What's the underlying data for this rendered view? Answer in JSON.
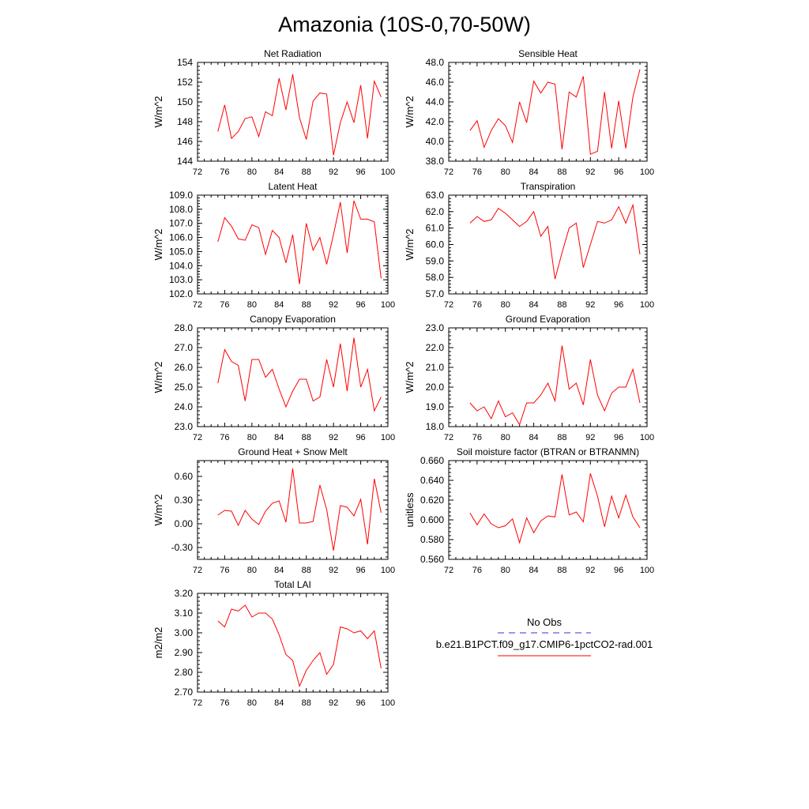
{
  "figure": {
    "title": "Amazonia (10S-0,70-50W)"
  },
  "legend": {
    "entries": [
      {
        "label": "No Obs",
        "color": "#3333cc",
        "dash": true
      },
      {
        "label": "b.e21.B1PCT.f09_g17.CMIP6-1pctCO2-rad.001",
        "color": "#ff0000",
        "dash": false
      }
    ]
  },
  "chart_data": [
    {
      "type": "line",
      "title": "Net Radiation",
      "ylabel": "W/m^2",
      "xlim": [
        72,
        100
      ],
      "ylim": [
        144,
        154
      ],
      "x_ticks": [
        72,
        76,
        80,
        84,
        88,
        92,
        96,
        100
      ],
      "y_ticks": [
        144,
        146,
        148,
        150,
        152,
        154
      ],
      "y_decimals": 0,
      "series": [
        {
          "color": "#ff0000",
          "x": [
            75,
            76,
            77,
            78,
            79,
            80,
            81,
            82,
            83,
            84,
            85,
            86,
            87,
            88,
            89,
            90,
            91,
            92,
            93,
            94,
            95,
            96,
            97,
            98,
            99
          ],
          "y": [
            147.0,
            149.7,
            146.3,
            147.0,
            148.3,
            148.5,
            146.5,
            149.0,
            148.6,
            152.4,
            149.2,
            152.8,
            148.4,
            146.2,
            150.1,
            150.9,
            150.8,
            144.6,
            147.9,
            150.0,
            147.9,
            151.7,
            146.3,
            152.1,
            150.5
          ]
        }
      ]
    },
    {
      "type": "line",
      "title": "Sensible Heat",
      "ylabel": "W/m^2",
      "xlim": [
        72,
        100
      ],
      "ylim": [
        38.0,
        48.0
      ],
      "x_ticks": [
        72,
        76,
        80,
        84,
        88,
        92,
        96,
        100
      ],
      "y_ticks": [
        38.0,
        40.0,
        42.0,
        44.0,
        46.0,
        48.0
      ],
      "y_decimals": 1,
      "series": [
        {
          "color": "#ff0000",
          "x": [
            75,
            76,
            77,
            78,
            79,
            80,
            81,
            82,
            83,
            84,
            85,
            86,
            87,
            88,
            89,
            90,
            91,
            92,
            93,
            94,
            95,
            96,
            97,
            98,
            99
          ],
          "y": [
            41.1,
            42.1,
            39.4,
            41.1,
            42.3,
            41.6,
            39.9,
            44.0,
            41.9,
            46.1,
            44.9,
            46.0,
            45.8,
            39.2,
            45.0,
            44.5,
            46.6,
            38.7,
            39.0,
            45.0,
            39.3,
            44.1,
            39.3,
            44.5,
            47.3
          ]
        }
      ]
    },
    {
      "type": "line",
      "title": "Latent Heat",
      "ylabel": "W/m^2",
      "xlim": [
        72,
        100
      ],
      "ylim": [
        102.0,
        109.0
      ],
      "x_ticks": [
        72,
        76,
        80,
        84,
        88,
        92,
        96,
        100
      ],
      "y_ticks": [
        102.0,
        103.0,
        104.0,
        105.0,
        106.0,
        107.0,
        108.0,
        109.0
      ],
      "y_decimals": 1,
      "series": [
        {
          "color": "#ff0000",
          "x": [
            75,
            76,
            77,
            78,
            79,
            80,
            81,
            82,
            83,
            84,
            85,
            86,
            87,
            88,
            89,
            90,
            91,
            92,
            93,
            94,
            95,
            96,
            97,
            98,
            99
          ],
          "y": [
            105.7,
            107.4,
            106.8,
            105.9,
            105.8,
            106.9,
            106.7,
            104.8,
            106.5,
            106.0,
            104.2,
            106.2,
            102.7,
            107.0,
            105.1,
            106.0,
            104.1,
            106.2,
            108.5,
            104.9,
            108.6,
            107.3,
            107.3,
            107.1,
            103.1
          ]
        }
      ]
    },
    {
      "type": "line",
      "title": "Transpiration",
      "ylabel": "W/m^2",
      "xlim": [
        72,
        100
      ],
      "ylim": [
        57.0,
        63.0
      ],
      "x_ticks": [
        72,
        76,
        80,
        84,
        88,
        92,
        96,
        100
      ],
      "y_ticks": [
        57.0,
        58.0,
        59.0,
        60.0,
        61.0,
        62.0,
        63.0
      ],
      "y_decimals": 1,
      "series": [
        {
          "color": "#ff0000",
          "x": [
            75,
            76,
            77,
            78,
            79,
            80,
            81,
            82,
            83,
            84,
            85,
            86,
            87,
            88,
            89,
            90,
            91,
            92,
            93,
            94,
            95,
            96,
            97,
            98,
            99
          ],
          "y": [
            61.3,
            61.7,
            61.4,
            61.5,
            62.2,
            61.9,
            61.5,
            61.1,
            61.4,
            62.0,
            60.5,
            61.1,
            57.9,
            59.5,
            61.0,
            61.3,
            58.6,
            60.0,
            61.4,
            61.3,
            61.5,
            62.3,
            61.3,
            62.4,
            59.4
          ]
        }
      ]
    },
    {
      "type": "line",
      "title": "Canopy Evaporation",
      "ylabel": "W/m^2",
      "xlim": [
        72,
        100
      ],
      "ylim": [
        23.0,
        28.0
      ],
      "x_ticks": [
        72,
        76,
        80,
        84,
        88,
        92,
        96,
        100
      ],
      "y_ticks": [
        23.0,
        24.0,
        25.0,
        26.0,
        27.0,
        28.0
      ],
      "y_decimals": 1,
      "series": [
        {
          "color": "#ff0000",
          "x": [
            75,
            76,
            77,
            78,
            79,
            80,
            81,
            82,
            83,
            84,
            85,
            86,
            87,
            88,
            89,
            90,
            91,
            92,
            93,
            94,
            95,
            96,
            97,
            98,
            99
          ],
          "y": [
            25.2,
            26.9,
            26.3,
            26.1,
            24.3,
            26.4,
            26.4,
            25.5,
            25.9,
            24.9,
            24.0,
            24.8,
            25.4,
            25.4,
            24.3,
            24.5,
            26.4,
            25.0,
            27.2,
            24.8,
            27.5,
            25.0,
            25.9,
            23.8,
            24.5
          ]
        }
      ]
    },
    {
      "type": "line",
      "title": "Ground Evaporation",
      "ylabel": "W/m^2",
      "xlim": [
        72,
        100
      ],
      "ylim": [
        18.0,
        23.0
      ],
      "x_ticks": [
        72,
        76,
        80,
        84,
        88,
        92,
        96,
        100
      ],
      "y_ticks": [
        18.0,
        19.0,
        20.0,
        21.0,
        22.0,
        23.0
      ],
      "y_decimals": 1,
      "series": [
        {
          "color": "#ff0000",
          "x": [
            75,
            76,
            77,
            78,
            79,
            80,
            81,
            82,
            83,
            84,
            85,
            86,
            87,
            88,
            89,
            90,
            91,
            92,
            93,
            94,
            95,
            96,
            97,
            98,
            99
          ],
          "y": [
            19.2,
            18.8,
            19.0,
            18.4,
            19.3,
            18.5,
            18.7,
            18.1,
            19.2,
            19.2,
            19.6,
            20.2,
            19.3,
            22.1,
            19.9,
            20.2,
            19.1,
            21.4,
            19.6,
            18.8,
            19.7,
            20.0,
            20.0,
            20.9,
            19.2
          ]
        }
      ]
    },
    {
      "type": "line",
      "title": "Ground Heat + Snow Melt",
      "ylabel": "W/m^2",
      "xlim": [
        72,
        100
      ],
      "ylim": [
        -0.45,
        0.8
      ],
      "x_ticks": [
        72,
        76,
        80,
        84,
        88,
        92,
        96,
        100
      ],
      "y_ticks": [
        -0.3,
        0.0,
        0.3,
        0.6
      ],
      "y_decimals": 2,
      "series": [
        {
          "color": "#ff0000",
          "x": [
            75,
            76,
            77,
            78,
            79,
            80,
            81,
            82,
            83,
            84,
            85,
            86,
            87,
            88,
            89,
            90,
            91,
            92,
            93,
            94,
            95,
            96,
            97,
            98,
            99
          ],
          "y": [
            0.11,
            0.17,
            0.16,
            -0.02,
            0.17,
            0.06,
            -0.01,
            0.16,
            0.26,
            0.29,
            0.02,
            0.7,
            0.01,
            0.01,
            0.03,
            0.49,
            0.18,
            -0.34,
            0.23,
            0.21,
            0.1,
            0.31,
            -0.26,
            0.57,
            0.14
          ]
        }
      ]
    },
    {
      "type": "line",
      "title": "Soil moisture factor (BTRAN or BTRANMN)",
      "ylabel": "unitless",
      "xlim": [
        72,
        100
      ],
      "ylim": [
        0.56,
        0.66
      ],
      "x_ticks": [
        72,
        76,
        80,
        84,
        88,
        92,
        96,
        100
      ],
      "y_ticks": [
        0.56,
        0.58,
        0.6,
        0.62,
        0.64,
        0.66
      ],
      "y_decimals": 3,
      "series": [
        {
          "color": "#ff0000",
          "x": [
            75,
            76,
            77,
            78,
            79,
            80,
            81,
            82,
            83,
            84,
            85,
            86,
            87,
            88,
            89,
            90,
            91,
            92,
            93,
            94,
            95,
            96,
            97,
            98,
            99
          ],
          "y": [
            0.607,
            0.595,
            0.606,
            0.596,
            0.592,
            0.594,
            0.601,
            0.577,
            0.602,
            0.587,
            0.599,
            0.604,
            0.603,
            0.646,
            0.605,
            0.608,
            0.598,
            0.647,
            0.624,
            0.593,
            0.624,
            0.602,
            0.625,
            0.603,
            0.592
          ]
        }
      ]
    },
    {
      "type": "line",
      "title": "Total LAI",
      "ylabel": "m2/m2",
      "xlim": [
        72,
        100
      ],
      "ylim": [
        2.7,
        3.2
      ],
      "x_ticks": [
        72,
        76,
        80,
        84,
        88,
        92,
        96,
        100
      ],
      "y_ticks": [
        2.7,
        2.8,
        2.9,
        3.0,
        3.1,
        3.2
      ],
      "y_decimals": 2,
      "series": [
        {
          "color": "#ff0000",
          "x": [
            75,
            76,
            77,
            78,
            79,
            80,
            81,
            82,
            83,
            84,
            85,
            86,
            87,
            88,
            89,
            90,
            91,
            92,
            93,
            94,
            95,
            96,
            97,
            98,
            99
          ],
          "y": [
            3.06,
            3.03,
            3.12,
            3.11,
            3.14,
            3.08,
            3.1,
            3.1,
            3.07,
            2.99,
            2.89,
            2.86,
            2.73,
            2.81,
            2.86,
            2.9,
            2.79,
            2.84,
            3.03,
            3.02,
            3.0,
            3.01,
            2.97,
            3.01,
            2.82
          ]
        }
      ]
    }
  ]
}
